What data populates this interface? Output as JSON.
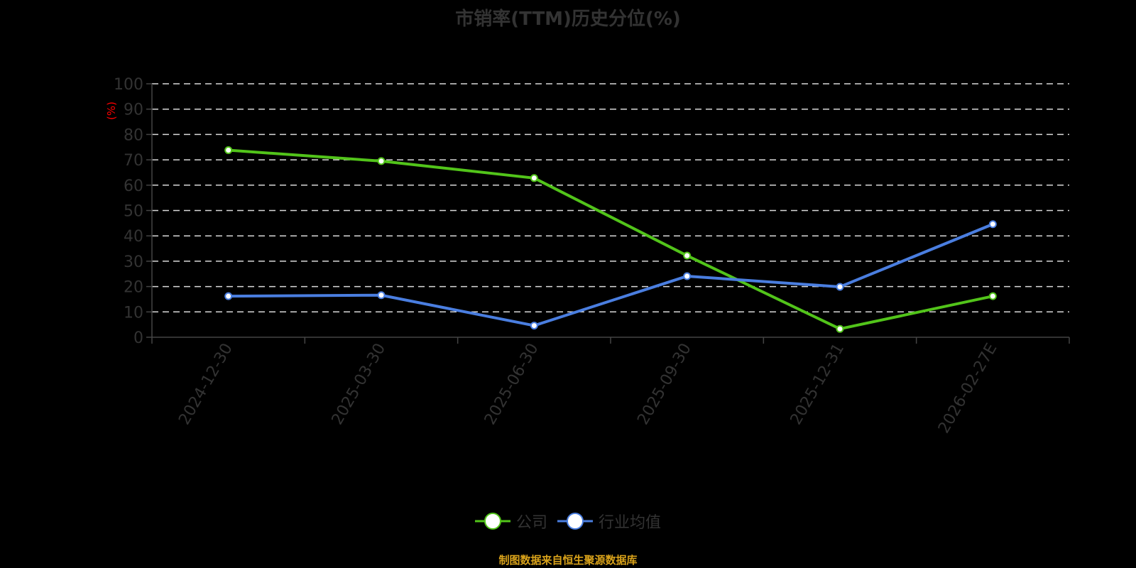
{
  "title": "市销率(TTM)历史分位(%)",
  "y_axis_unit_label": "(%)",
  "source_note": "制图数据来自恒生聚源数据库",
  "colors": {
    "company": "#52c41a",
    "industry": "#4a7ee0",
    "grid": "#d9d9d9",
    "axis": "#444444",
    "text": "#333333",
    "unit_label": "#ff0000",
    "source_note": "#d9a21a"
  },
  "legend": [
    {
      "name": "公司",
      "color": "#52c41a"
    },
    {
      "name": "行业均值",
      "color": "#4a7ee0"
    }
  ],
  "chart_data": {
    "type": "line",
    "title": "市销率(TTM)历史分位(%)",
    "xlabel": "",
    "ylabel": "(%)",
    "categories": [
      "2024-12-30",
      "2025-03-30",
      "2025-06-30",
      "2025-09-30",
      "2025-12-31",
      "2026-02-27E"
    ],
    "series": [
      {
        "name": "公司",
        "color": "#52c41a",
        "values": [
          73.8,
          69.5,
          62.8,
          32.2,
          3.3,
          16.2
        ]
      },
      {
        "name": "行业均值",
        "color": "#4a7ee0",
        "values": [
          16.2,
          16.6,
          4.6,
          24.1,
          19.9,
          44.6
        ]
      }
    ],
    "ylim": [
      0,
      100
    ],
    "yticks": [
      0,
      10,
      20,
      30,
      40,
      50,
      60,
      70,
      80,
      90,
      100
    ],
    "grid": true,
    "grid_style": "dashed",
    "legend_position": "bottom",
    "xtick_rotation": -60
  }
}
